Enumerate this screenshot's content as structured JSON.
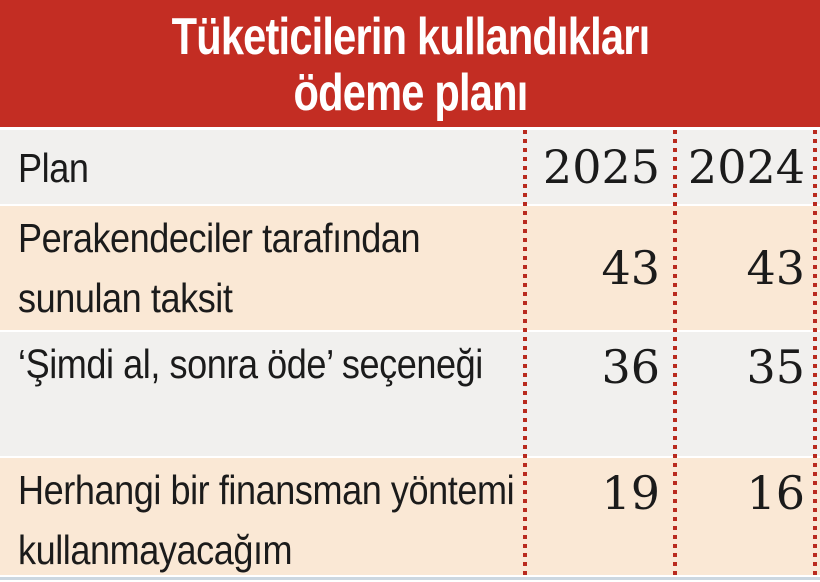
{
  "title": {
    "line1": "Tüketicilerin kullandıkları",
    "line2": "ödeme planı"
  },
  "table": {
    "header": {
      "plan": "Plan",
      "y2025": "2025",
      "y2024": "2024"
    },
    "rows": [
      {
        "plan": "Perakendeciler tarafından sunulan taksit",
        "v2025": "43",
        "v2024": "43"
      },
      {
        "plan": "‘Şimdi al, sonra öde’ seçeneği",
        "v2025": "36",
        "v2024": "35"
      },
      {
        "plan": "Herhangi bir finansman yöntemi kullanmayacağım",
        "v2025": "19",
        "v2024": "16"
      }
    ]
  },
  "colors": {
    "banner_red": "#c32d23",
    "dot_red": "#b92a1e",
    "row_gray": "#f1f0ee",
    "row_peach": "#fae8d5",
    "text": "#1b1b1b",
    "bottom_rule": "#ccd7e0",
    "title_text": "#ffffff"
  },
  "chart_data": {
    "type": "table",
    "title": "Tüketicilerin kullandıkları ödeme planı",
    "columns": [
      "Plan",
      "2025",
      "2024"
    ],
    "rows": [
      [
        "Perakendeciler tarafından sunulan taksit",
        43,
        43
      ],
      [
        "‘Şimdi al, sonra öde’ seçeneği",
        36,
        35
      ],
      [
        "Herhangi bir finansman yöntemi kullanmayacağım",
        19,
        16
      ]
    ]
  }
}
